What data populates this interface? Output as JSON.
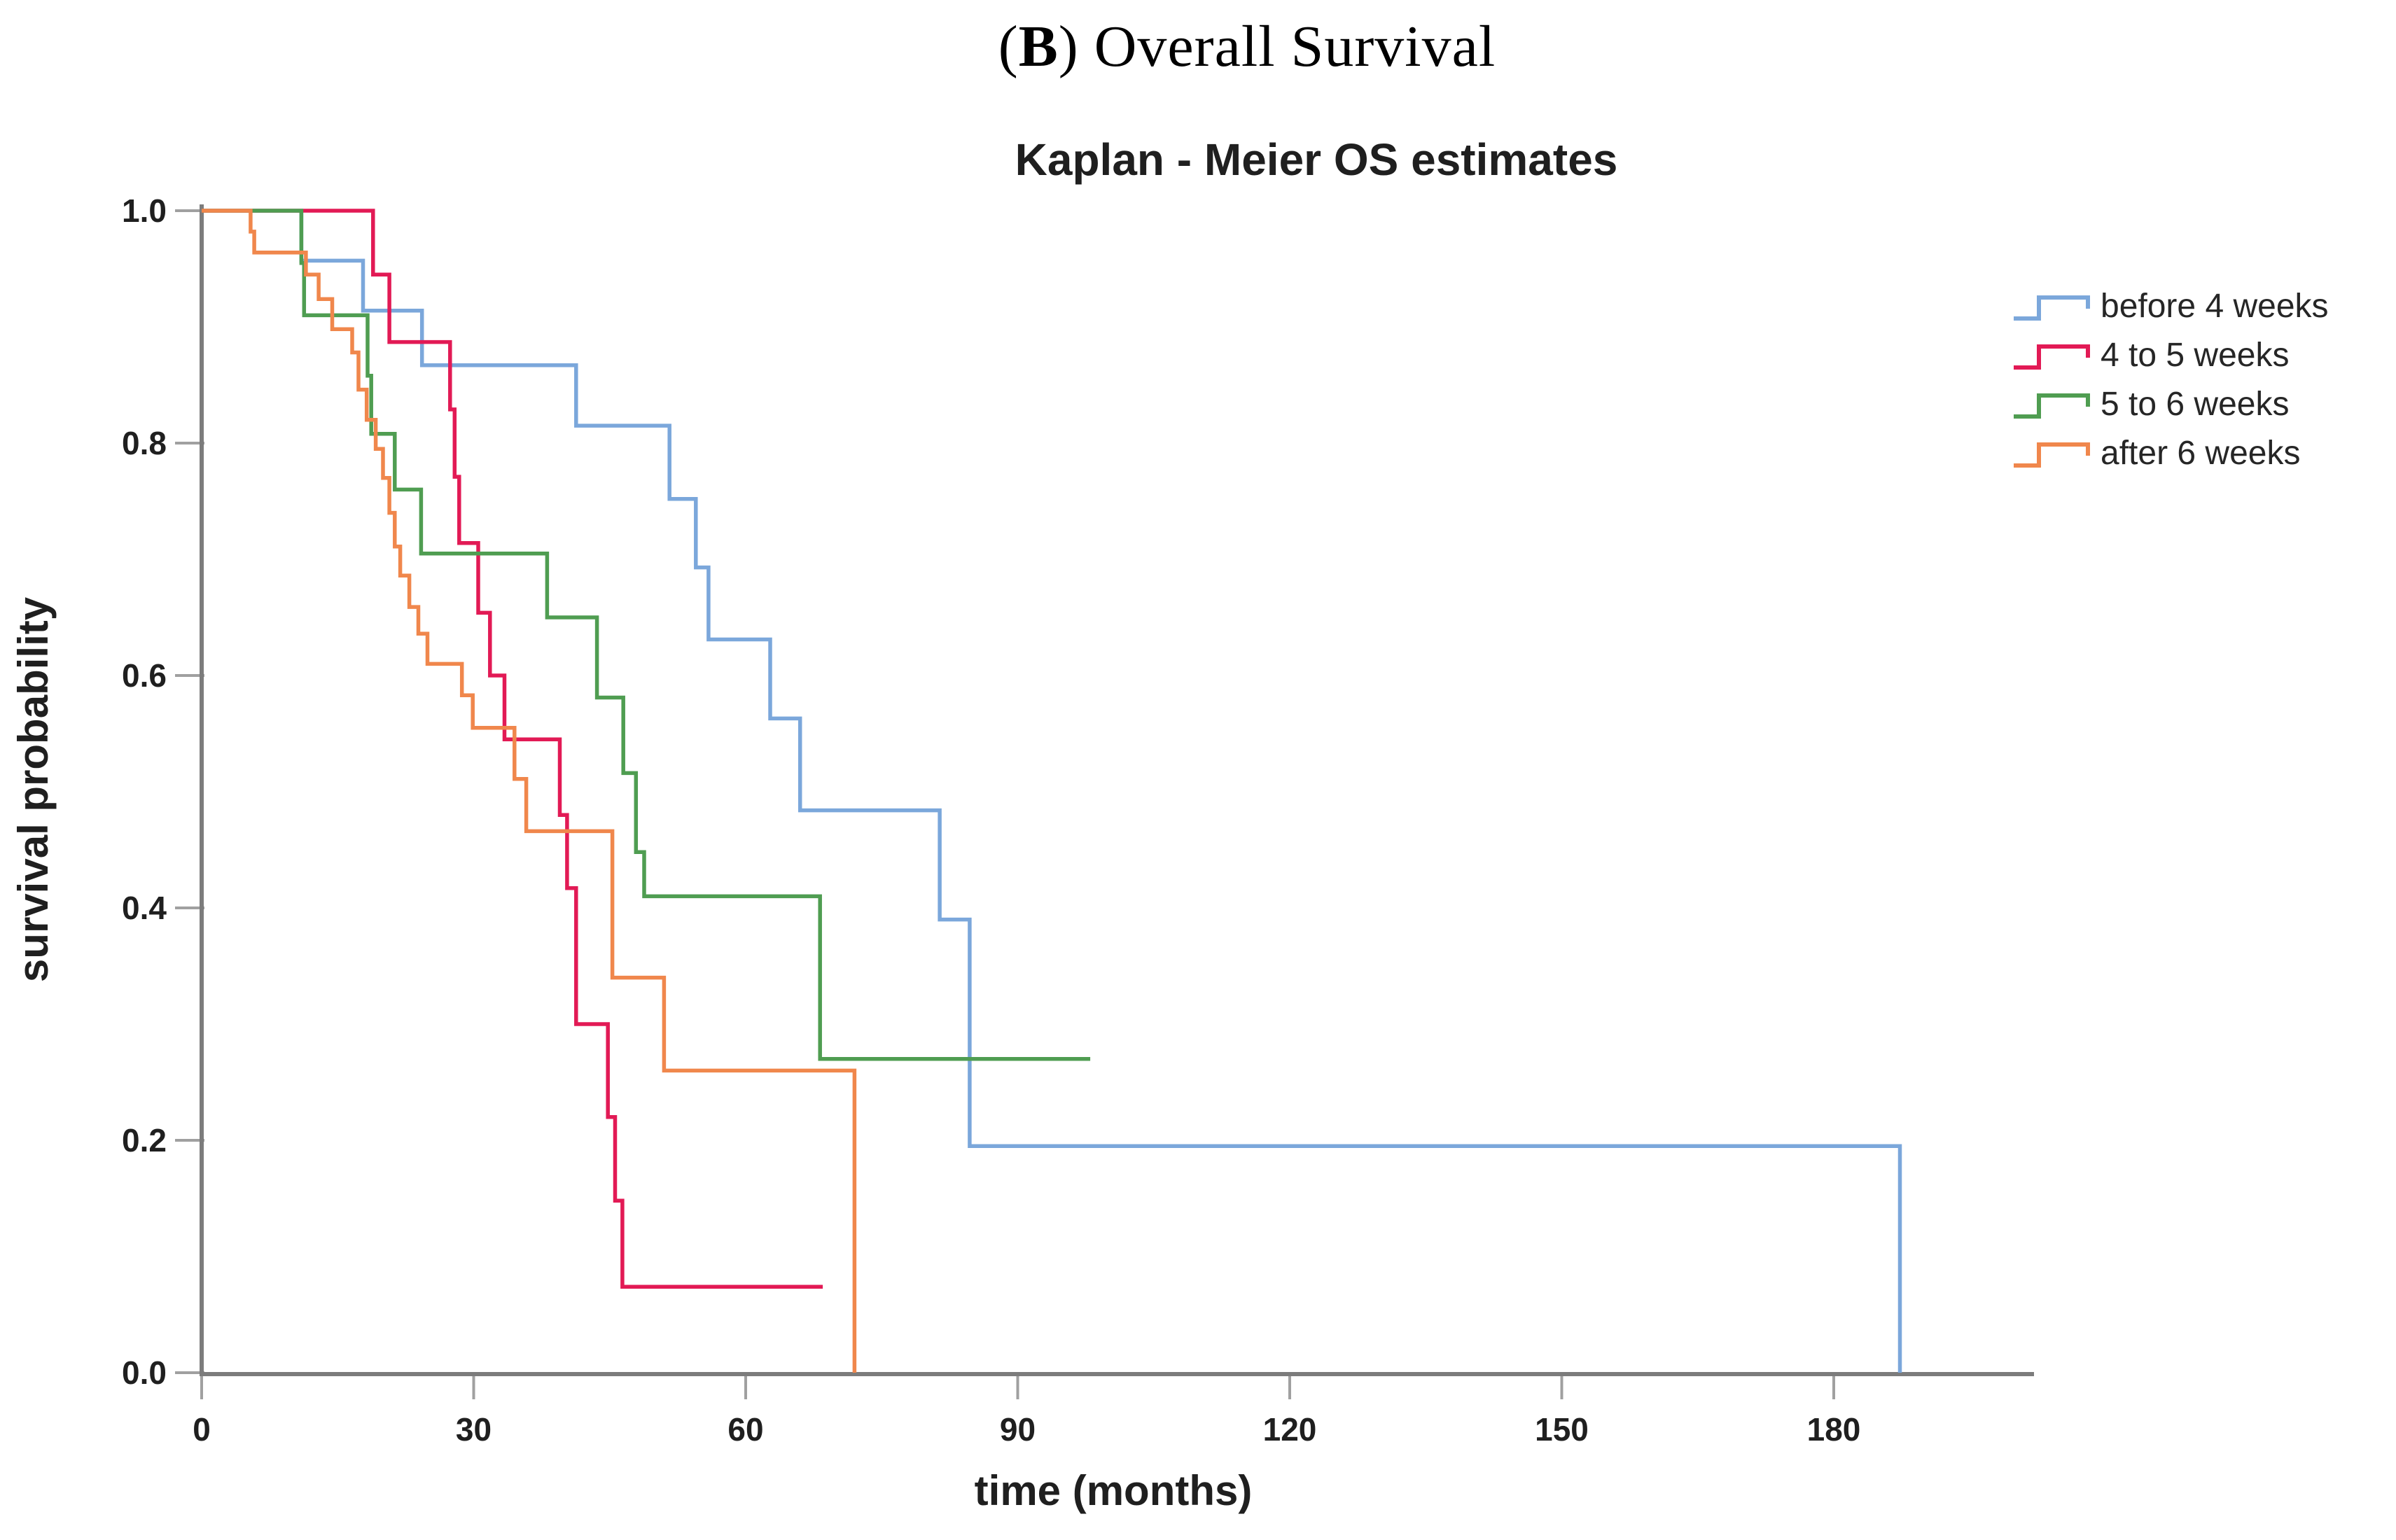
{
  "header": {
    "title_open": "(",
    "title_bold": "B",
    "title_rest": ") Overall Survival"
  },
  "chart_data": {
    "type": "line",
    "subtype": "kaplan-meier-step",
    "title": "Kaplan - Meier OS estimates",
    "xlabel": "time (months)",
    "ylabel": "survival probability",
    "xlim": [
      0,
      202
    ],
    "ylim": [
      0.0,
      1.0
    ],
    "xticks": [
      0,
      30,
      60,
      90,
      120,
      150,
      180
    ],
    "yticks": [
      1.0,
      0.8,
      0.6,
      0.4,
      0.2,
      0.0
    ],
    "grid": false,
    "legend_position": "upper right",
    "series": [
      {
        "name": "before 4 weeks",
        "color": "#7BA7DB",
        "end": 187.3,
        "points": [
          [
            0,
            1.0
          ],
          [
            11,
            0.957
          ],
          [
            17.8,
            0.914
          ],
          [
            24.3,
            0.867
          ],
          [
            41.3,
            0.815
          ],
          [
            51.6,
            0.752
          ],
          [
            54.5,
            0.693
          ],
          [
            55.9,
            0.631
          ],
          [
            62.7,
            0.563
          ],
          [
            66,
            0.484
          ],
          [
            81.4,
            0.39
          ],
          [
            84.7,
            0.195
          ],
          [
            187.3,
            0
          ]
        ]
      },
      {
        "name": "4 to 5 weeks",
        "color": "#E21A55",
        "end": 68.5,
        "points": [
          [
            0,
            1.0
          ],
          [
            18.9,
            0.945
          ],
          [
            20.7,
            0.887
          ],
          [
            27.4,
            0.829
          ],
          [
            27.9,
            0.771
          ],
          [
            28.4,
            0.714
          ],
          [
            30.5,
            0.654
          ],
          [
            31.8,
            0.6
          ],
          [
            33.4,
            0.545
          ],
          [
            39.5,
            0.48
          ],
          [
            40.3,
            0.417
          ],
          [
            41.3,
            0.3
          ],
          [
            44.8,
            0.22
          ],
          [
            45.6,
            0.148
          ],
          [
            46.4,
            0.074
          ]
        ]
      },
      {
        "name": "5 to 6 weeks",
        "color": "#4F9D51",
        "end": 98,
        "points": [
          [
            0,
            1.0
          ],
          [
            11,
            0.955
          ],
          [
            11.3,
            0.91
          ],
          [
            18.3,
            0.858
          ],
          [
            18.7,
            0.808
          ],
          [
            21.3,
            0.76
          ],
          [
            24.2,
            0.705
          ],
          [
            38.1,
            0.65
          ],
          [
            43.6,
            0.581
          ],
          [
            46.5,
            0.516
          ],
          [
            47.9,
            0.448
          ],
          [
            48.8,
            0.41
          ],
          [
            68.2,
            0.27
          ]
        ]
      },
      {
        "name": "after 6 weeks",
        "color": "#F0874C",
        "end": 72,
        "points": [
          [
            0,
            1.0
          ],
          [
            5.4,
            0.982
          ],
          [
            5.8,
            0.964
          ],
          [
            11.5,
            0.945
          ],
          [
            12.9,
            0.924
          ],
          [
            14.4,
            0.898
          ],
          [
            16.6,
            0.878
          ],
          [
            17.3,
            0.846
          ],
          [
            18.2,
            0.82
          ],
          [
            19.2,
            0.795
          ],
          [
            20.0,
            0.77
          ],
          [
            20.7,
            0.74
          ],
          [
            21.3,
            0.711
          ],
          [
            21.9,
            0.686
          ],
          [
            22.9,
            0.659
          ],
          [
            23.9,
            0.636
          ],
          [
            24.9,
            0.61
          ],
          [
            28.7,
            0.583
          ],
          [
            29.9,
            0.555
          ],
          [
            34.5,
            0.511
          ],
          [
            35.8,
            0.466
          ],
          [
            45.3,
            0.34
          ],
          [
            51,
            0.26
          ],
          [
            72,
            0
          ]
        ]
      }
    ],
    "colors": {
      "axis": "#7c7c7c",
      "tick": "#a0a0a0",
      "text": "#1f1f1f",
      "legend_text": "#262626"
    }
  }
}
